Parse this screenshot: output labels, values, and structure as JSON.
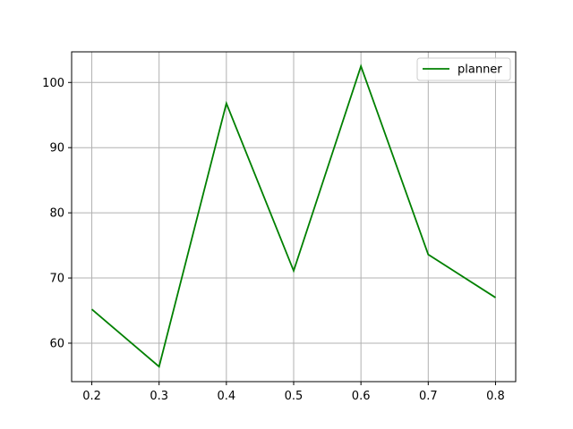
{
  "chart_data": {
    "type": "line",
    "title": "",
    "xlabel": "",
    "ylabel": "",
    "x": [
      0.2,
      0.3,
      0.4,
      0.5,
      0.6,
      0.7,
      0.8
    ],
    "series": [
      {
        "name": "planner",
        "color": "#008000",
        "values": [
          65.2,
          56.4,
          96.8,
          71.1,
          102.5,
          73.6,
          67.0
        ]
      }
    ],
    "xlim": [
      0.17,
      0.83
    ],
    "ylim": [
      54.1,
      104.7
    ],
    "xticks": [
      0.2,
      0.3,
      0.4,
      0.5,
      0.6,
      0.7,
      0.8
    ],
    "xtick_labels": [
      "0.2",
      "0.3",
      "0.4",
      "0.5",
      "0.6",
      "0.7",
      "0.8"
    ],
    "yticks": [
      60,
      70,
      80,
      90,
      100
    ],
    "ytick_labels": [
      "60",
      "70",
      "80",
      "90",
      "100"
    ],
    "grid": true,
    "grid_color": "#b0b0b0",
    "legend_position": "top-right"
  }
}
